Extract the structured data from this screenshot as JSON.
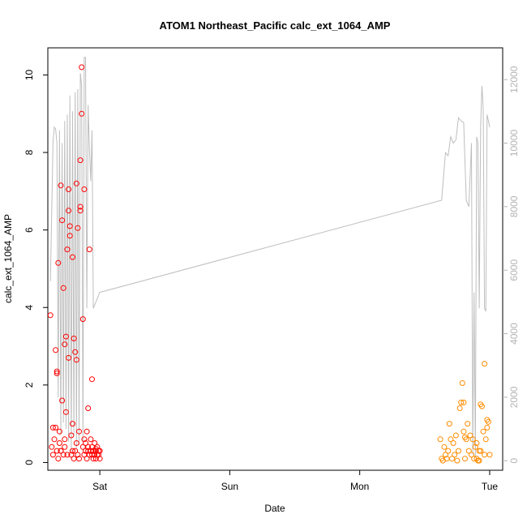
{
  "chart_data": {
    "type": "scatter",
    "title": "ATOM1 Northeast_Pacific calc_ext_1064_AMP",
    "xlabel": "Date",
    "ylabel": "calc_ext_1064_AMP",
    "x_ticks": [
      "Sat",
      "Sun",
      "Mon",
      "Tue"
    ],
    "y_ticks": [
      "0",
      "2",
      "4",
      "6",
      "8",
      "10"
    ],
    "y_ticks_right": [
      "0",
      "2000",
      "4000",
      "6000",
      "8000",
      "10000",
      "12000"
    ],
    "x_range_days": [
      -0.4,
      3.1
    ],
    "ylim": [
      -0.2,
      10.7
    ],
    "ylim_right": [
      -300,
      13000
    ],
    "colors": {
      "series_1": "#ff0000",
      "series_2": "#ff8c00",
      "altitude": "#bebebe",
      "axis": "#000000",
      "right_axis": "#b3b3b3"
    },
    "series": [
      {
        "color": "#ff0000",
        "x": [
          -0.38,
          -0.37,
          -0.36,
          -0.35,
          -0.34,
          -0.34,
          -0.33,
          -0.33,
          -0.32,
          -0.32,
          -0.31,
          -0.31,
          -0.3,
          -0.3,
          -0.29,
          -0.29,
          -0.28,
          -0.28,
          -0.27,
          -0.27,
          -0.26,
          -0.26,
          -0.25,
          -0.25,
          -0.24,
          -0.24,
          -0.23,
          -0.23,
          -0.22,
          -0.22,
          -0.21,
          -0.21,
          -0.2,
          -0.2,
          -0.19,
          -0.19,
          -0.18,
          -0.18,
          -0.17,
          -0.17,
          -0.16,
          -0.16,
          -0.15,
          -0.15,
          -0.14,
          -0.14,
          -0.13,
          -0.13,
          -0.12,
          -0.12,
          -0.11,
          -0.11,
          -0.1,
          -0.1,
          -0.09,
          -0.09,
          -0.08,
          -0.08,
          -0.07,
          -0.07,
          -0.06,
          -0.06,
          -0.05,
          -0.05,
          -0.04,
          -0.04,
          -0.03,
          -0.03,
          -0.02,
          -0.02,
          -0.01,
          -0.01,
          0.0,
          0.0,
          -0.36,
          -0.33,
          -0.3,
          -0.27,
          -0.24,
          -0.21,
          -0.18,
          -0.15,
          -0.12,
          -0.09,
          -0.06,
          -0.03
        ],
        "y": [
          3.8,
          0.4,
          0.2,
          0.6,
          2.9,
          0.9,
          2.3,
          0.3,
          5.15,
          0.1,
          0.5,
          0.8,
          7.15,
          0.3,
          6.25,
          1.6,
          4.5,
          0.2,
          0.6,
          0.4,
          3.25,
          1.3,
          5.5,
          0.2,
          6.5,
          7.05,
          6.1,
          5.85,
          0.7,
          0.2,
          1.0,
          5.3,
          3.2,
          0.1,
          0.3,
          2.85,
          0.5,
          7.2,
          6.05,
          0.2,
          0.8,
          0.1,
          6.5,
          6.6,
          10.2,
          9.0,
          0.4,
          3.7,
          0.2,
          0.6,
          0.3,
          0.5,
          0.8,
          0.1,
          0.3,
          0.4,
          5.5,
          0.2,
          0.3,
          0.6,
          0.2,
          0.4,
          0.1,
          0.3,
          0.5,
          0.2,
          0.3,
          0.1,
          0.4,
          0.2,
          0.3,
          0.2,
          0.1,
          0.3,
          0.9,
          2.35,
          0.3,
          3.05,
          2.7,
          0.3,
          2.65,
          7.8,
          7.05,
          1.4,
          2.15,
          0.35
        ],
        "marker": "circle-open"
      },
      {
        "color": "#ff8c00",
        "x": [
          2.62,
          2.63,
          2.64,
          2.65,
          2.66,
          2.67,
          2.68,
          2.69,
          2.7,
          2.71,
          2.72,
          2.73,
          2.74,
          2.75,
          2.76,
          2.77,
          2.78,
          2.79,
          2.8,
          2.81,
          2.82,
          2.83,
          2.84,
          2.85,
          2.86,
          2.87,
          2.88,
          2.89,
          2.9,
          2.91,
          2.92,
          2.93,
          2.94,
          2.95,
          2.96,
          2.97,
          2.98,
          2.99,
          3.0,
          2.8,
          2.81,
          2.9,
          2.92,
          2.93,
          2.96,
          2.98
        ],
        "y": [
          0.6,
          0.1,
          0.05,
          0.4,
          0.2,
          0.1,
          0.3,
          1.0,
          0.6,
          0.1,
          0.5,
          0.2,
          0.7,
          0.05,
          0.3,
          1.4,
          1.55,
          2.05,
          0.8,
          0.1,
          0.6,
          1.0,
          0.3,
          0.7,
          0.2,
          0.6,
          0.1,
          0.4,
          0.5,
          0.05,
          0.3,
          1.5,
          1.45,
          0.8,
          2.55,
          0.6,
          1.1,
          1.05,
          0.2,
          1.55,
          0.65,
          0.1,
          0.05,
          0.3,
          0.2,
          0.9
        ],
        "marker": "circle-open"
      }
    ],
    "altitude_line": {
      "color": "#bebebe",
      "x": [
        -0.38,
        -0.36,
        -0.35,
        -0.34,
        -0.33,
        -0.32,
        -0.31,
        -0.3,
        -0.29,
        -0.28,
        -0.27,
        -0.26,
        -0.25,
        -0.24,
        -0.23,
        -0.22,
        -0.21,
        -0.2,
        -0.19,
        -0.18,
        -0.17,
        -0.16,
        -0.15,
        -0.14,
        -0.13,
        -0.12,
        -0.11,
        -0.1,
        -0.09,
        -0.08,
        -0.07,
        -0.06,
        -0.05,
        -0.04,
        -0.03,
        -0.02,
        -0.01,
        0.0,
        2.63,
        2.64,
        2.66,
        2.68,
        2.7,
        2.72,
        2.74,
        2.76,
        2.78,
        2.8,
        2.82,
        2.84,
        2.86,
        2.87,
        2.88,
        2.89,
        2.9,
        2.91,
        2.92,
        2.93,
        2.94,
        2.95,
        2.96,
        2.97,
        2.98,
        3.0
      ],
      "y": [
        5650,
        10050,
        10500,
        10450,
        10000,
        2000,
        10400,
        800,
        10000,
        1200,
        10700,
        1000,
        10900,
        600,
        11500,
        300,
        11000,
        800,
        11600,
        400,
        11700,
        500,
        12200,
        11800,
        600,
        12700,
        12700,
        4800,
        11200,
        9800,
        8800,
        10400,
        4800,
        4900,
        5000,
        5100,
        5200,
        5300,
        8200,
        8700,
        9700,
        9600,
        10200,
        10000,
        10100,
        10800,
        10700,
        10650,
        8200,
        8000,
        10000,
        200,
        5300,
        100,
        10200,
        10000,
        4800,
        10500,
        11800,
        11100,
        4800,
        4700,
        10900,
        10500
      ]
    }
  }
}
